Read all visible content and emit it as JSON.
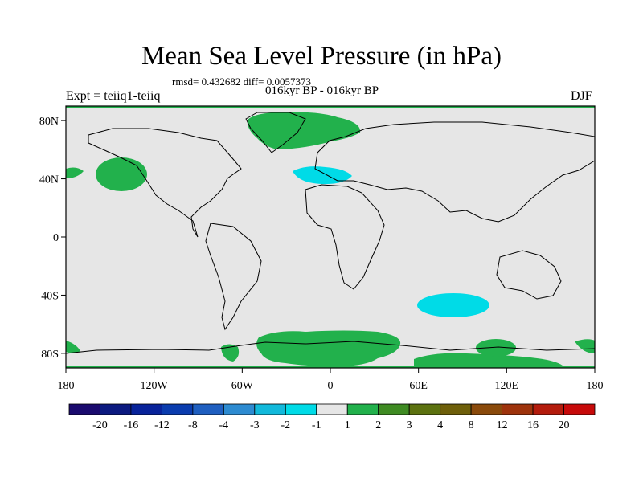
{
  "title": "Mean Sea Level Pressure (in hPa)",
  "stats": "rmsd= 0.432682 diff= 0.0057373",
  "period": "016kyr BP - 016kyr BP",
  "experiment": "Expt = teiiq1-teiiq",
  "season": "DJF",
  "map": {
    "background_color": "#e6e6e6",
    "lat_range": [
      -90,
      90
    ],
    "lon_range": [
      -180,
      180
    ],
    "lat_ticks": [
      "80N",
      "40N",
      "0",
      "40S",
      "80S"
    ],
    "lon_ticks": [
      "180",
      "120W",
      "60W",
      "0",
      "60E",
      "120E",
      "180"
    ],
    "anomalies": [
      {
        "region": "Greenland / North Atlantic",
        "bin": "1 to 2",
        "color": "#22b14c"
      },
      {
        "region": "North Pacific",
        "bin": "1 to 2",
        "color": "#22b14c"
      },
      {
        "region": "Western Mediterranean",
        "bin": "-2 to -1",
        "color": "#00dbe7"
      },
      {
        "region": "South Indian Ocean",
        "bin": "-2 to -1",
        "color": "#00dbe7"
      },
      {
        "region": "Southern Ocean / Antarctica",
        "bin": "1 to 2",
        "color": "#22b14c"
      }
    ]
  },
  "colorbar": {
    "labels": [
      "-20",
      "-16",
      "-12",
      "-8",
      "-4",
      "-3",
      "-2",
      "-1",
      "1",
      "2",
      "3",
      "4",
      "8",
      "12",
      "16",
      "20"
    ],
    "colors": [
      "#1a0a6e",
      "#0c1a80",
      "#08239a",
      "#0a3cae",
      "#1f5fc0",
      "#2d8bd1",
      "#12b9db",
      "#00dbe7",
      "#e6e6e6",
      "#22b14c",
      "#3f8b23",
      "#5c7210",
      "#6e5f0a",
      "#8a4a0b",
      "#9e330c",
      "#b41c0d",
      "#c70a0a"
    ]
  }
}
